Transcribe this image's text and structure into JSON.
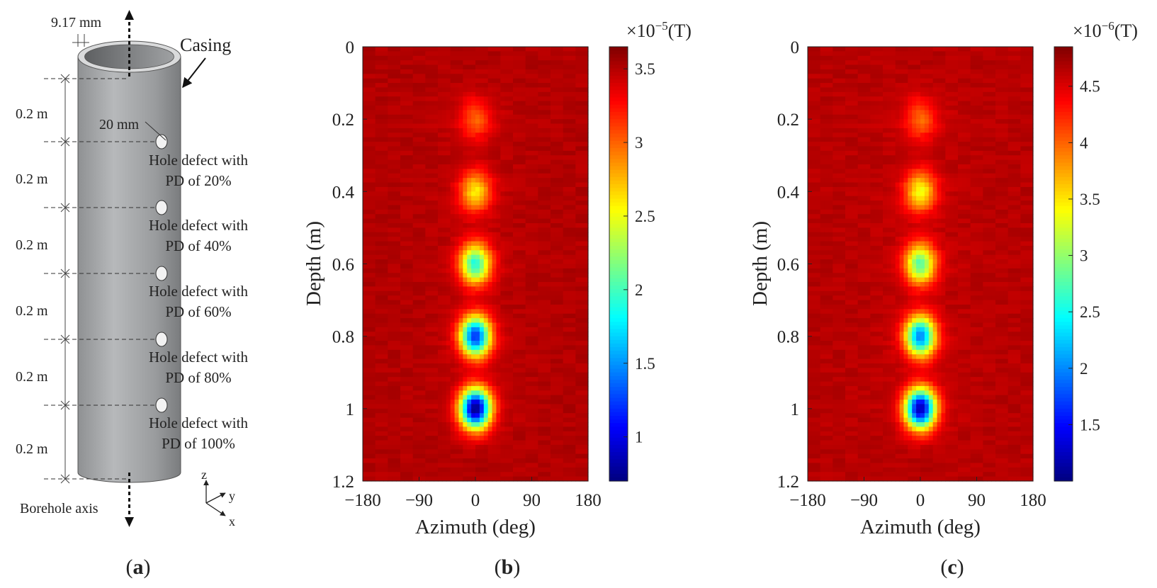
{
  "panel_a": {
    "top_thickness": "9.17 mm",
    "casing_label": "Casing",
    "hole_dia": "20 mm",
    "spacings": [
      "0.2 m",
      "0.2 m",
      "0.2 m",
      "0.2 m",
      "0.2 m",
      "0.2 m"
    ],
    "defects": [
      {
        "line1": "Hole defect with",
        "line2": "PD of 20%"
      },
      {
        "line1": "Hole defect with",
        "line2": "PD of 40%"
      },
      {
        "line1": "Hole defect with",
        "line2": "PD of 60%"
      },
      {
        "line1": "Hole defect with",
        "line2": "PD of 80%"
      },
      {
        "line1": "Hole defect with",
        "line2": "PD of 100%"
      }
    ],
    "axis_label": "Borehole axis",
    "axes": {
      "z": "z",
      "y": "y",
      "x": "x"
    },
    "caption_letter": "a"
  },
  "chart_data": [
    {
      "type": "heatmap",
      "panel": "b",
      "xlabel": "Azimuth (deg)",
      "ylabel": "Depth (m)",
      "xlim": [
        -180,
        180
      ],
      "ylim": [
        0,
        1.2
      ],
      "x_ticks": [
        -180,
        -90,
        0,
        90,
        180
      ],
      "x_tick_labels": [
        "−180",
        "−90",
        "0",
        "90",
        "180"
      ],
      "y_ticks": [
        0,
        0.2,
        0.4,
        0.6,
        0.8,
        1,
        1.2
      ],
      "y_tick_labels": [
        "0",
        "0.2",
        "0.4",
        "0.6",
        "0.8",
        "1",
        "1.2"
      ],
      "colorbar": {
        "multiplier_base": "×10",
        "exponent": "−5",
        "unit": "(T)",
        "min": 0.7,
        "max": 3.65,
        "ticks": [
          1,
          1.5,
          2,
          2.5,
          3,
          3.5
        ],
        "tick_labels": [
          "1",
          "1.5",
          "2",
          "2.5",
          "3",
          "3.5"
        ]
      },
      "background": 3.55,
      "defects": [
        {
          "depth": 0.2,
          "azimuth": 0,
          "min_value": 3.1
        },
        {
          "depth": 0.4,
          "azimuth": 0,
          "min_value": 2.7
        },
        {
          "depth": 0.6,
          "azimuth": 0,
          "min_value": 2.0
        },
        {
          "depth": 0.8,
          "azimuth": 0,
          "min_value": 1.3
        },
        {
          "depth": 1.0,
          "azimuth": 0,
          "min_value": 0.8
        }
      ],
      "caption_letter": "b"
    },
    {
      "type": "heatmap",
      "panel": "c",
      "xlabel": "Azimuth (deg)",
      "ylabel": "Depth (m)",
      "xlim": [
        -180,
        180
      ],
      "ylim": [
        0,
        1.2
      ],
      "x_ticks": [
        -180,
        -90,
        0,
        90,
        180
      ],
      "x_tick_labels": [
        "−180",
        "−90",
        "0",
        "90",
        "180"
      ],
      "y_ticks": [
        0,
        0.2,
        0.4,
        0.6,
        0.8,
        1,
        1.2
      ],
      "y_tick_labels": [
        "0",
        "0.2",
        "0.4",
        "0.6",
        "0.8",
        "1",
        "1.2"
      ],
      "colorbar": {
        "multiplier_base": "×10",
        "exponent": "−6",
        "unit": "(T)",
        "min": 1.0,
        "max": 4.85,
        "ticks": [
          1.5,
          2,
          2.5,
          3,
          3.5,
          4,
          4.5
        ],
        "tick_labels": [
          "1.5",
          "2",
          "2.5",
          "3",
          "3.5",
          "4",
          "4.5"
        ]
      },
      "background": 4.7,
      "defects": [
        {
          "depth": 0.2,
          "azimuth": 0,
          "min_value": 4.1
        },
        {
          "depth": 0.4,
          "azimuth": 0,
          "min_value": 3.5
        },
        {
          "depth": 0.6,
          "azimuth": 0,
          "min_value": 2.9
        },
        {
          "depth": 0.8,
          "azimuth": 0,
          "min_value": 2.1
        },
        {
          "depth": 1.0,
          "azimuth": 0,
          "min_value": 1.3
        }
      ],
      "caption_letter": "c"
    }
  ]
}
